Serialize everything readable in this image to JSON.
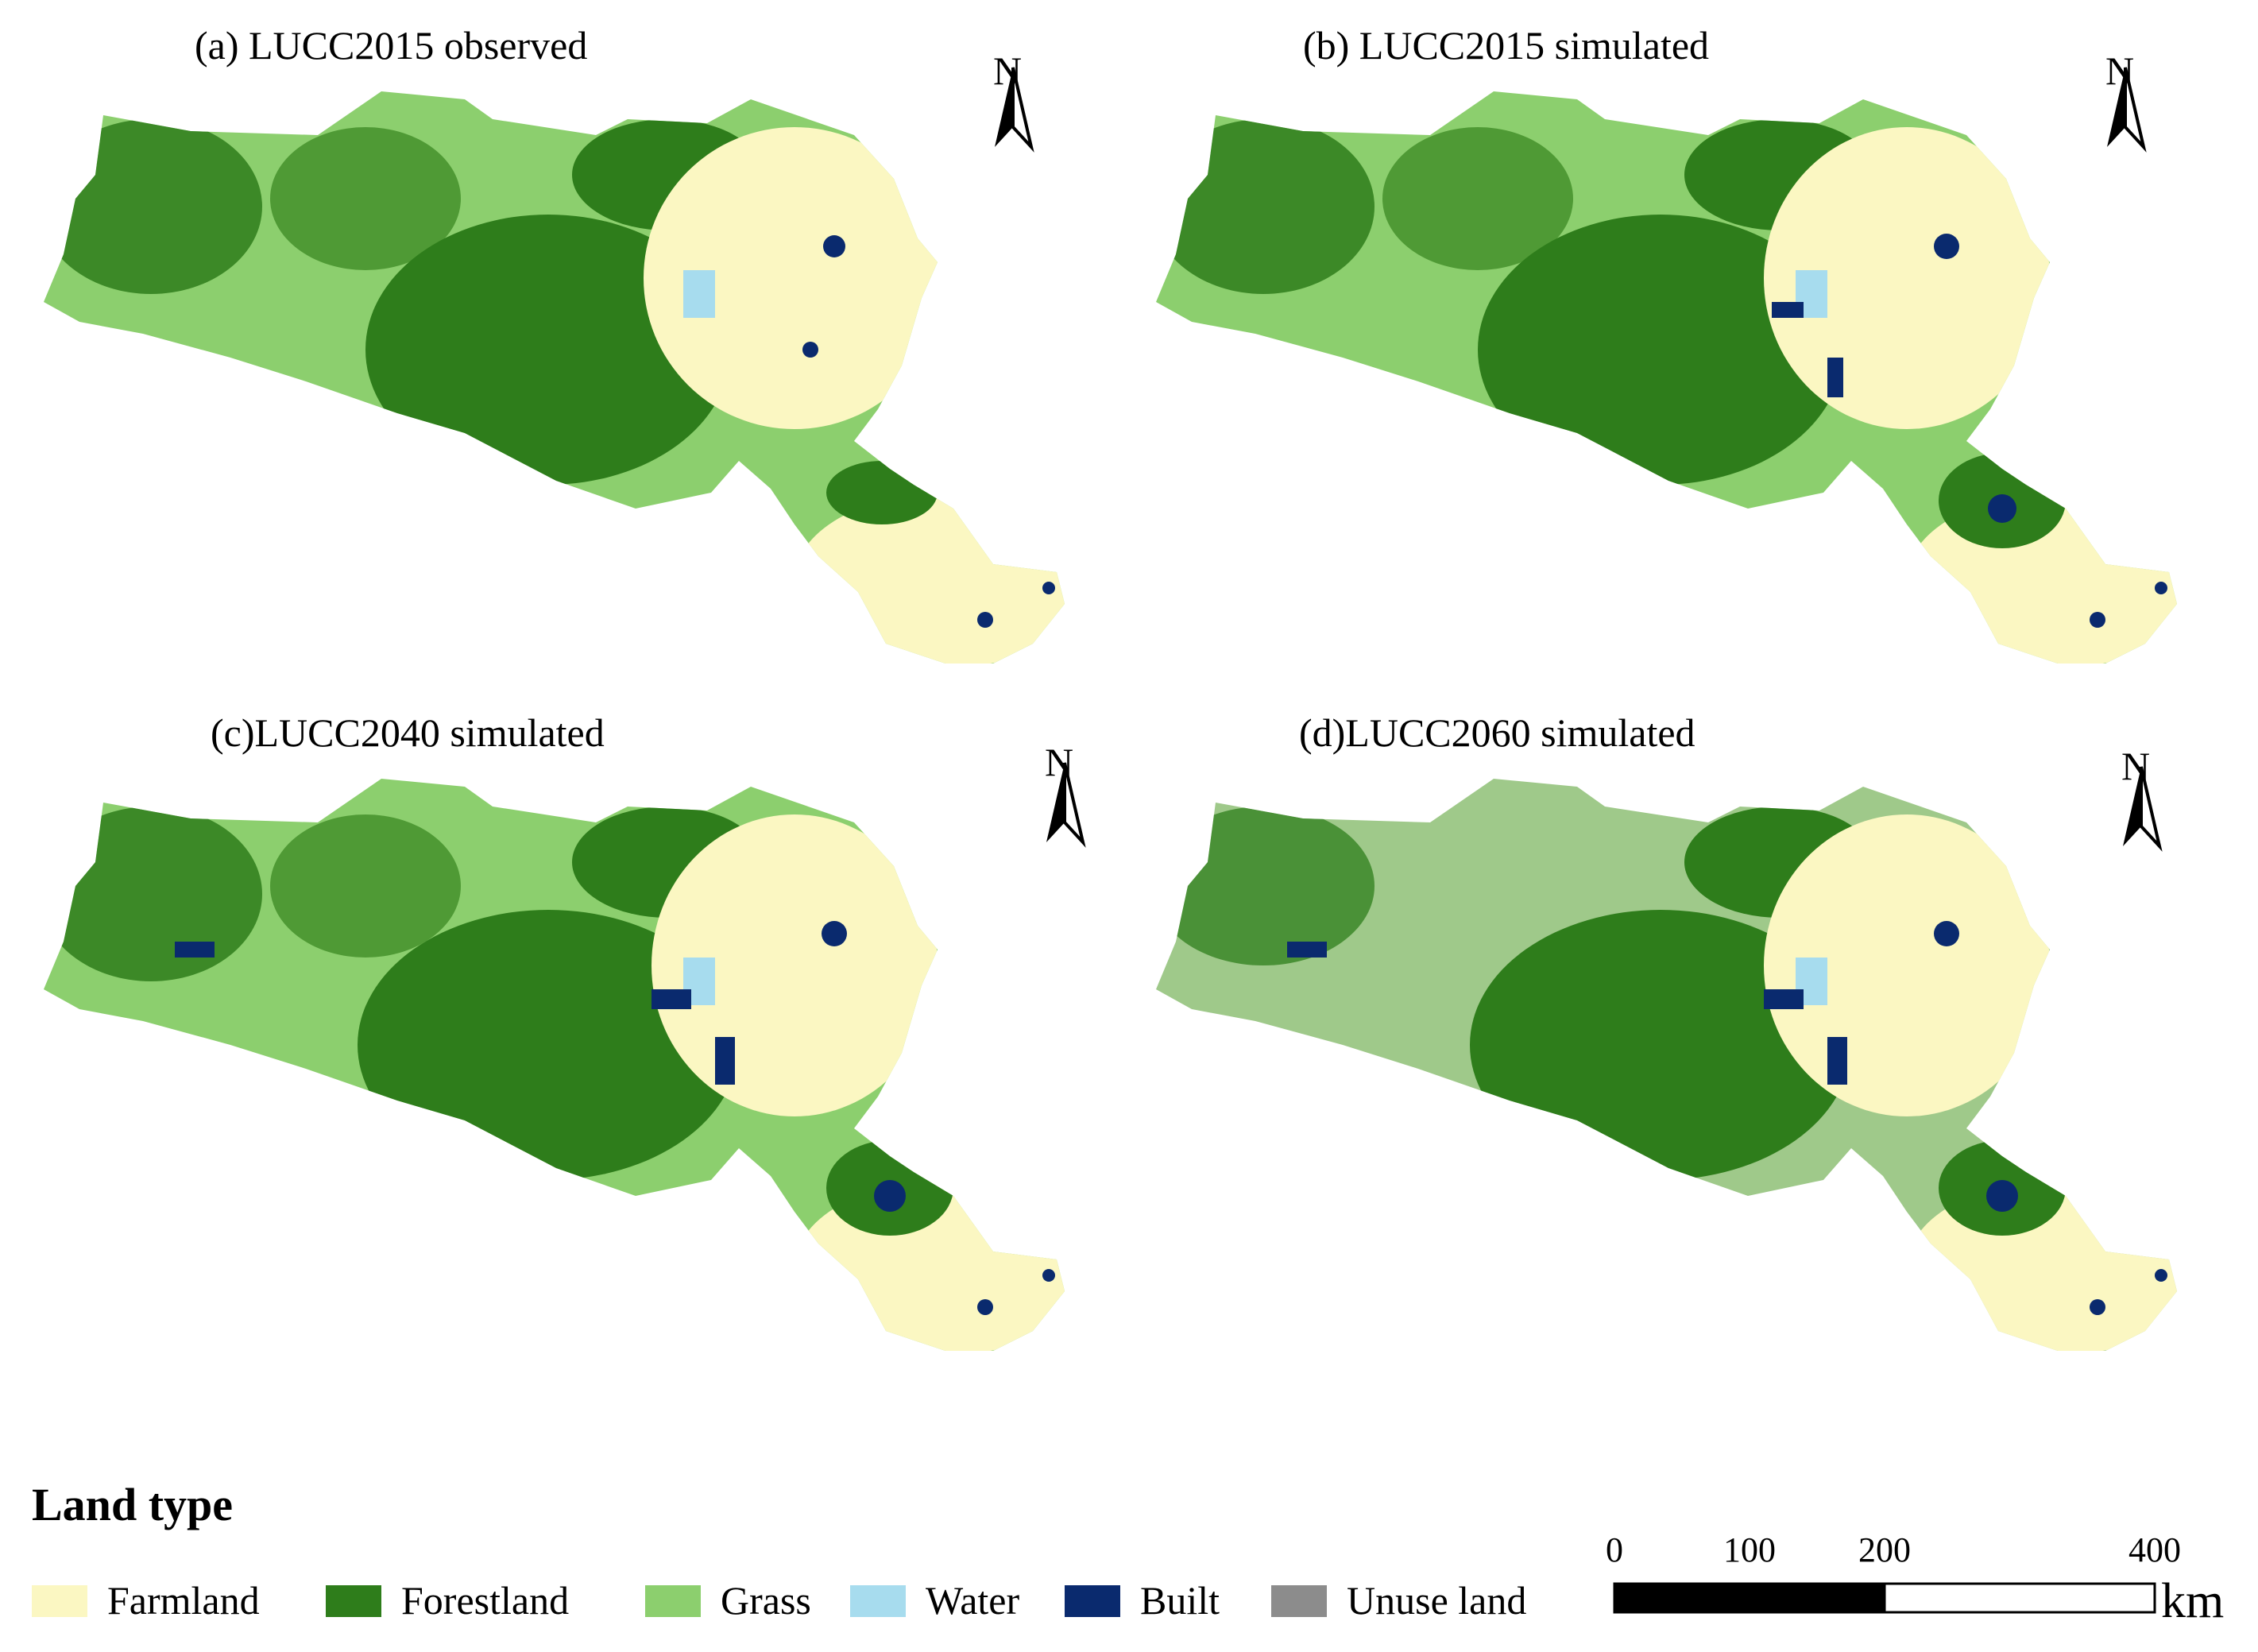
{
  "panels": [
    {
      "title": "(a) LUCC2015 observed",
      "north": "N"
    },
    {
      "title": "(b) LUCC2015 simulated",
      "north": "N"
    },
    {
      "title": "(c)LUCC2040 simulated",
      "north": "N"
    },
    {
      "title": "(d)LUCC2060 simulated",
      "north": "N"
    }
  ],
  "legend": {
    "title": "Land type",
    "items": [
      {
        "label": "Farmland",
        "color": "#fbf7c2"
      },
      {
        "label": "Forestland",
        "color": "#2e7d1b"
      },
      {
        "label": "Grass",
        "color": "#8ccf6e"
      },
      {
        "label": "Water",
        "color": "#a7dcee"
      },
      {
        "label": "Built",
        "color": "#0a2a6e"
      },
      {
        "label": "Unuse land",
        "color": "#8c8c8c"
      }
    ]
  },
  "scale_bar": {
    "ticks": [
      "0",
      "100",
      "200",
      "400"
    ],
    "tick_values": [
      0,
      100,
      200,
      400
    ],
    "unit": "km"
  },
  "colors": {
    "farmland": "#fbf7c2",
    "forest": "#2e7d1b",
    "forest_light": "#4f9a35",
    "grass": "#8ccf6e",
    "grass_muted": "#9fc98a",
    "water": "#a7dcee",
    "built": "#0a2a6e"
  }
}
